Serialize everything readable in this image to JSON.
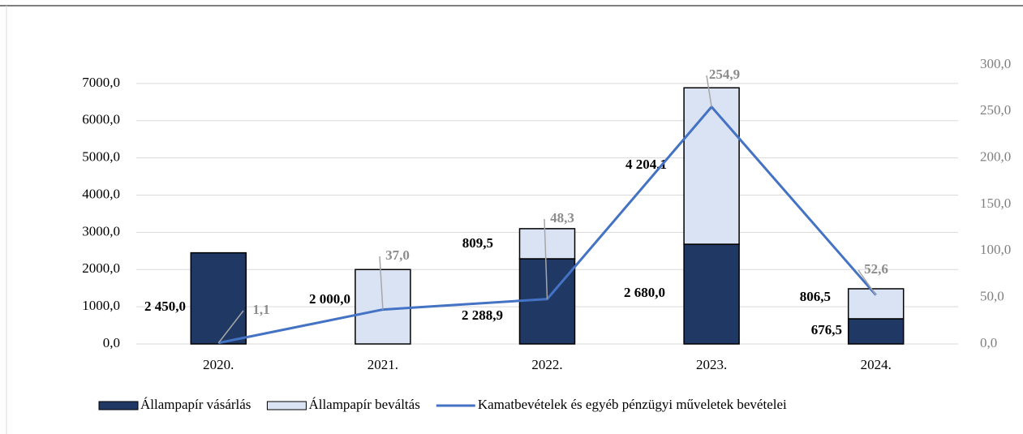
{
  "chart_data": {
    "type": "bar",
    "stacked": true,
    "categories": [
      "2020.",
      "2021.",
      "2022.",
      "2023.",
      "2024."
    ],
    "series": [
      {
        "name": "Állampapír vásárlás",
        "color": "#1f3864",
        "values": [
          2450.0,
          null,
          2288.9,
          2680.0,
          676.5
        ],
        "value_labels": [
          "2 450,0",
          null,
          "2 288,9",
          "2 680,0",
          "676,5"
        ]
      },
      {
        "name": "Állampapír beváltás",
        "color": "#dae3f3",
        "values": [
          null,
          2000.0,
          809.5,
          4204.1,
          806.5
        ],
        "value_labels": [
          null,
          "2 000,0",
          "809,5",
          "4 204,1",
          "806,5"
        ]
      },
      {
        "name": "Kamatbevételek és egyéb pénzügyi műveletek bevételei",
        "type": "line",
        "axis": "y2",
        "color": "#4472c4",
        "values": [
          1.1,
          37.0,
          48.3,
          254.9,
          52.6
        ],
        "value_labels": [
          "1,1",
          "37,0",
          "48,3",
          "254,9",
          "52,6"
        ]
      }
    ],
    "ylim": [
      0,
      7500
    ],
    "yticks": [
      {
        "value": 0,
        "label": "0,0"
      },
      {
        "value": 1000,
        "label": "1000,0"
      },
      {
        "value": 2000,
        "label": "2000,0"
      },
      {
        "value": 3000,
        "label": "3000,0"
      },
      {
        "value": 4000,
        "label": "4000,0"
      },
      {
        "value": 5000,
        "label": "5000,0"
      },
      {
        "value": 6000,
        "label": "6000,0"
      },
      {
        "value": 7000,
        "label": "7000,0"
      }
    ],
    "y2lim": [
      0,
      300
    ],
    "y2ticks": [
      {
        "value": 0,
        "label": "0,0"
      },
      {
        "value": 50,
        "label": "50,0"
      },
      {
        "value": 100,
        "label": "100,0"
      },
      {
        "value": 150,
        "label": "150,0"
      },
      {
        "value": 200,
        "label": "200,0"
      },
      {
        "value": 250,
        "label": "250,0"
      },
      {
        "value": 300,
        "label": "300,0"
      }
    ],
    "grid": true,
    "legend": "bottom"
  }
}
